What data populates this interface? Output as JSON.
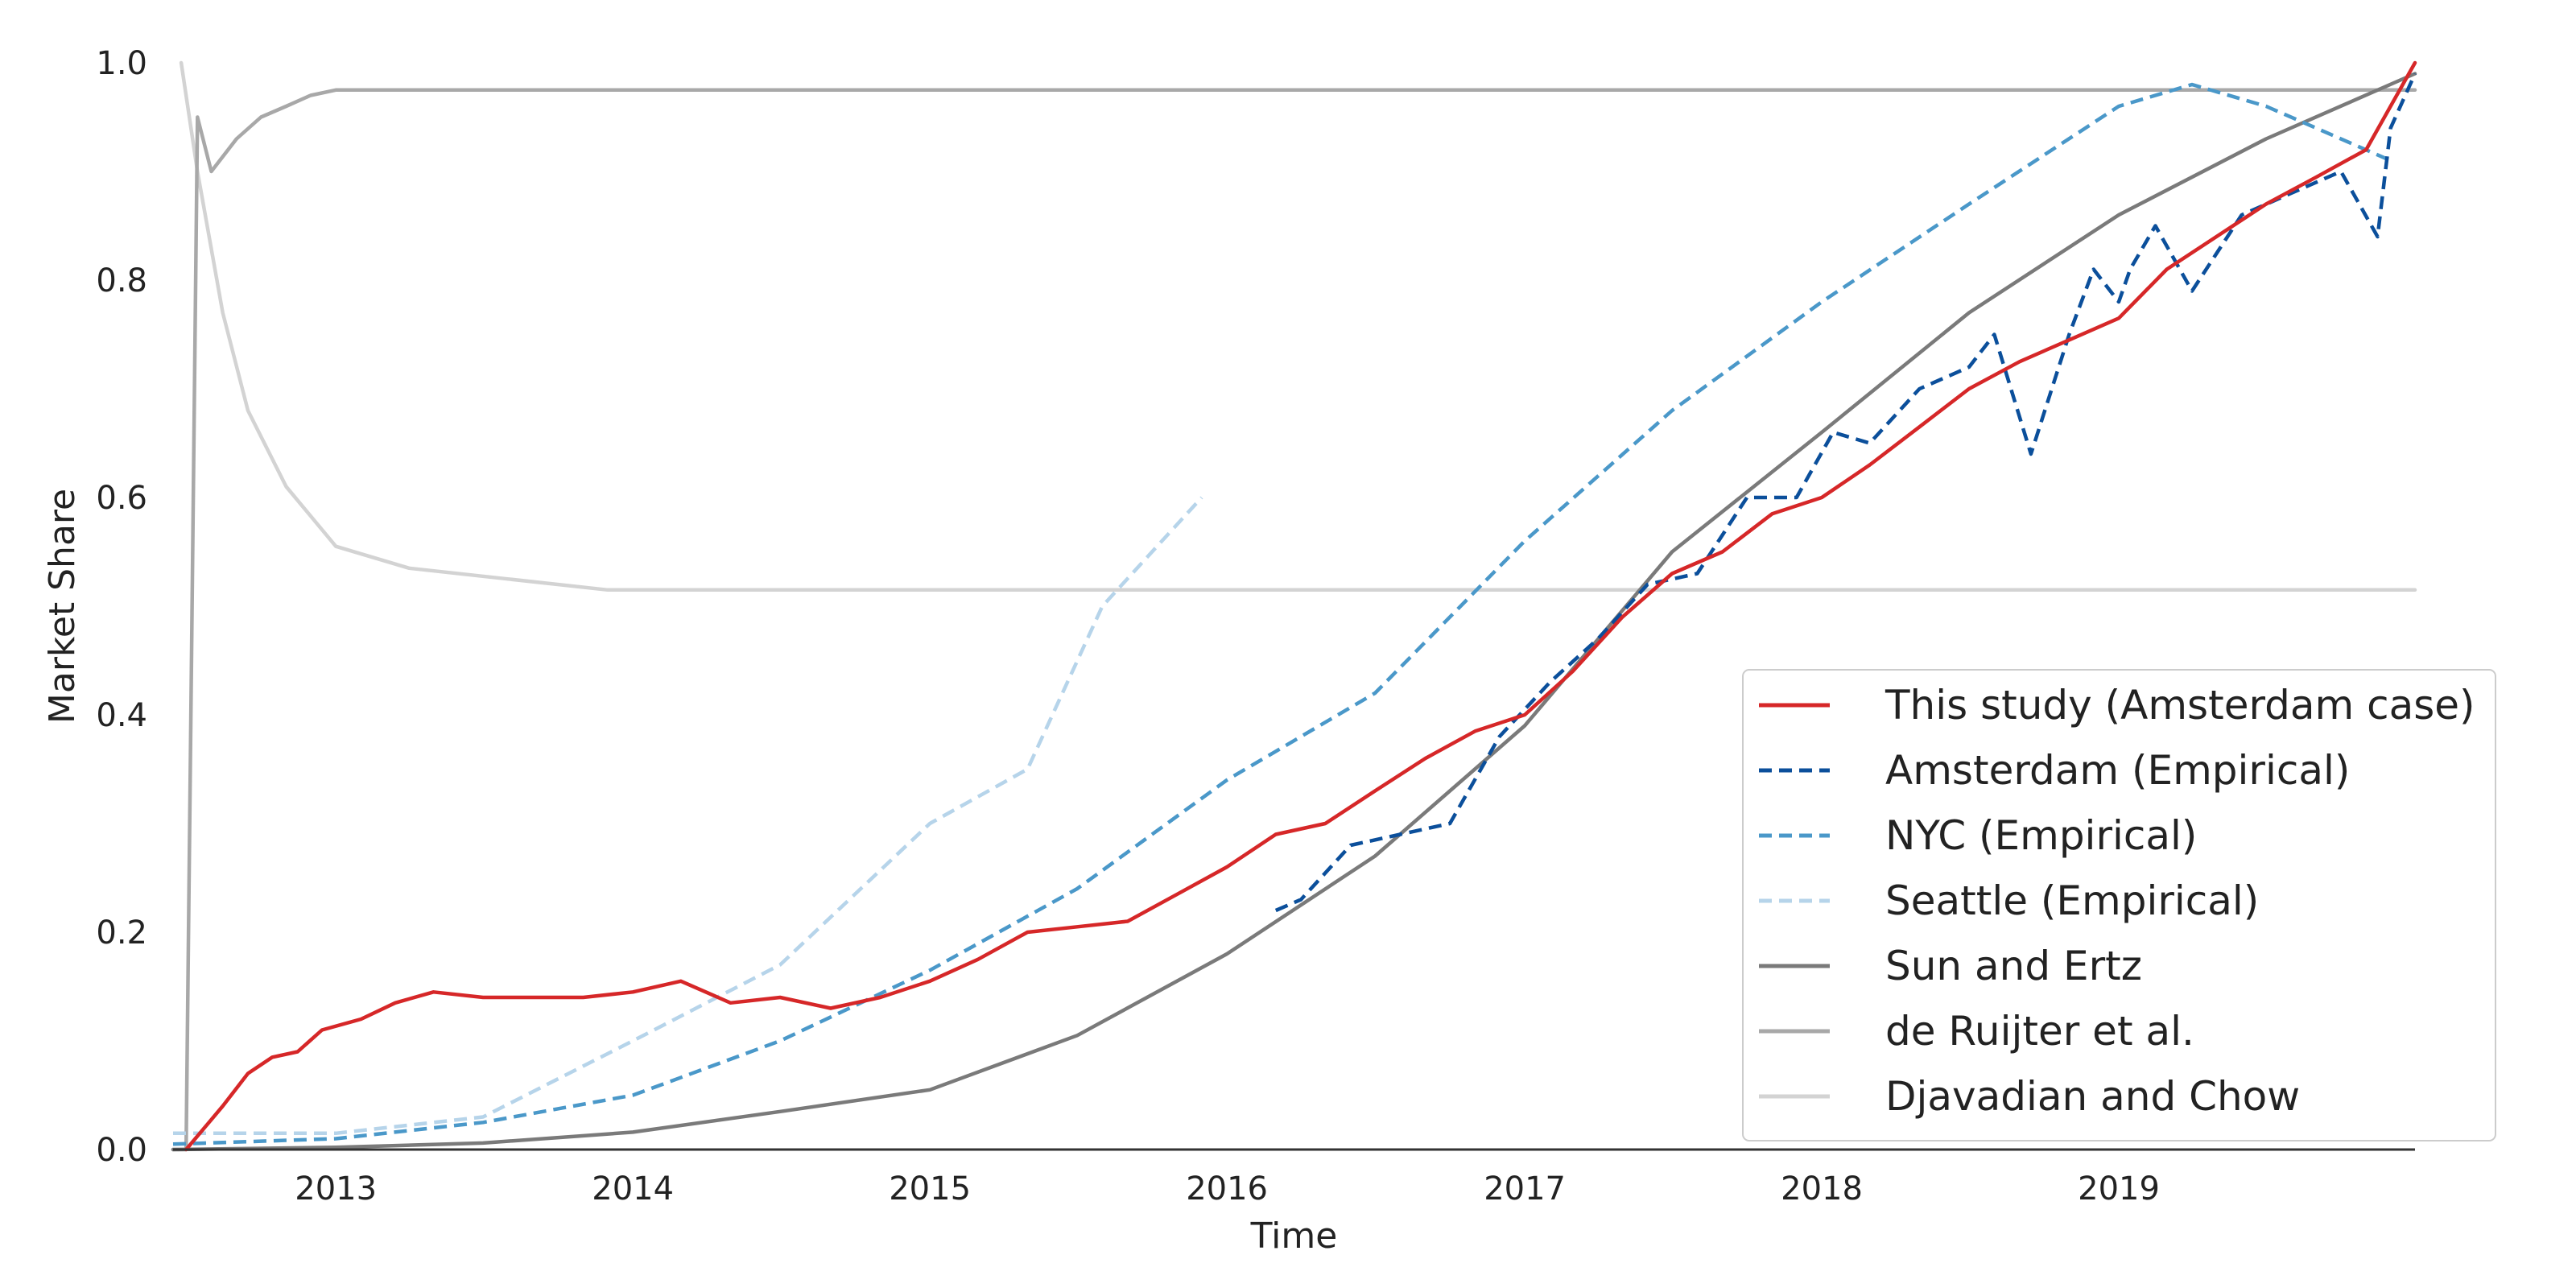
{
  "chart_data": {
    "type": "line",
    "title": "",
    "xlabel": "Time",
    "ylabel": "Market Share",
    "xlim": [
      "2012-06-15",
      "2019-12-31"
    ],
    "ylim": [
      0,
      1
    ],
    "x_ticks": [
      "2013",
      "2014",
      "2015",
      "2016",
      "2017",
      "2018",
      "2019"
    ],
    "y_ticks": [
      "0.0",
      "0.2",
      "0.4",
      "0.6",
      "0.8",
      "1.0"
    ],
    "grid": false,
    "legend_position": "lower-right",
    "series": [
      {
        "name": "This study (Amsterdam case)",
        "color": "#d62728",
        "dash": "solid",
        "points": [
          [
            "2012-07-01",
            0.0
          ],
          [
            "2012-08-15",
            0.04
          ],
          [
            "2012-09-15",
            0.07
          ],
          [
            "2012-10-15",
            0.085
          ],
          [
            "2012-11-15",
            0.09
          ],
          [
            "2012-12-15",
            0.11
          ],
          [
            "2013-02-01",
            0.12
          ],
          [
            "2013-03-15",
            0.135
          ],
          [
            "2013-05-01",
            0.145
          ],
          [
            "2013-07-01",
            0.14
          ],
          [
            "2013-09-01",
            0.14
          ],
          [
            "2013-11-01",
            0.14
          ],
          [
            "2014-01-01",
            0.145
          ],
          [
            "2014-03-01",
            0.155
          ],
          [
            "2014-05-01",
            0.135
          ],
          [
            "2014-07-01",
            0.14
          ],
          [
            "2014-09-01",
            0.13
          ],
          [
            "2014-11-01",
            0.14
          ],
          [
            "2015-01-01",
            0.155
          ],
          [
            "2015-03-01",
            0.175
          ],
          [
            "2015-05-01",
            0.2
          ],
          [
            "2015-07-01",
            0.205
          ],
          [
            "2015-09-01",
            0.21
          ],
          [
            "2015-11-01",
            0.235
          ],
          [
            "2016-01-01",
            0.26
          ],
          [
            "2016-03-01",
            0.29
          ],
          [
            "2016-05-01",
            0.3
          ],
          [
            "2016-07-01",
            0.33
          ],
          [
            "2016-09-01",
            0.36
          ],
          [
            "2016-11-01",
            0.385
          ],
          [
            "2017-01-01",
            0.4
          ],
          [
            "2017-03-01",
            0.44
          ],
          [
            "2017-05-01",
            0.49
          ],
          [
            "2017-07-01",
            0.53
          ],
          [
            "2017-09-01",
            0.55
          ],
          [
            "2017-11-01",
            0.585
          ],
          [
            "2018-01-01",
            0.6
          ],
          [
            "2018-03-01",
            0.63
          ],
          [
            "2018-05-01",
            0.665
          ],
          [
            "2018-07-01",
            0.7
          ],
          [
            "2018-09-01",
            0.725
          ],
          [
            "2018-11-01",
            0.745
          ],
          [
            "2019-01-01",
            0.765
          ],
          [
            "2019-03-01",
            0.81
          ],
          [
            "2019-05-01",
            0.84
          ],
          [
            "2019-07-01",
            0.87
          ],
          [
            "2019-09-01",
            0.895
          ],
          [
            "2019-11-01",
            0.92
          ],
          [
            "2019-12-31",
            1.0
          ]
        ]
      },
      {
        "name": "Amsterdam (Empirical)",
        "color": "#0b4f9b",
        "dash": "dashed",
        "points": [
          [
            "2016-03-01",
            0.22
          ],
          [
            "2016-04-01",
            0.23
          ],
          [
            "2016-06-01",
            0.28
          ],
          [
            "2016-08-01",
            0.29
          ],
          [
            "2016-10-01",
            0.3
          ],
          [
            "2016-12-01",
            0.38
          ],
          [
            "2017-02-01",
            0.43
          ],
          [
            "2017-04-01",
            0.47
          ],
          [
            "2017-06-01",
            0.52
          ],
          [
            "2017-08-01",
            0.53
          ],
          [
            "2017-10-01",
            0.6
          ],
          [
            "2017-12-01",
            0.6
          ],
          [
            "2018-01-15",
            0.66
          ],
          [
            "2018-03-01",
            0.65
          ],
          [
            "2018-05-01",
            0.7
          ],
          [
            "2018-07-01",
            0.72
          ],
          [
            "2018-08-01",
            0.75
          ],
          [
            "2018-09-15",
            0.64
          ],
          [
            "2018-11-01",
            0.75
          ],
          [
            "2018-12-01",
            0.81
          ],
          [
            "2019-01-01",
            0.78
          ],
          [
            "2019-01-15",
            0.81
          ],
          [
            "2019-02-15",
            0.85
          ],
          [
            "2019-04-01",
            0.79
          ],
          [
            "2019-06-01",
            0.86
          ],
          [
            "2019-08-01",
            0.88
          ],
          [
            "2019-10-01",
            0.9
          ],
          [
            "2019-11-15",
            0.84
          ],
          [
            "2019-12-01",
            0.94
          ],
          [
            "2019-12-31",
            0.99
          ]
        ]
      },
      {
        "name": "NYC (Empirical)",
        "color": "#4a98c9",
        "dash": "dashed",
        "points": [
          [
            "2012-06-15",
            0.005
          ],
          [
            "2013-01-01",
            0.01
          ],
          [
            "2013-07-01",
            0.025
          ],
          [
            "2014-01-01",
            0.05
          ],
          [
            "2014-07-01",
            0.1
          ],
          [
            "2015-01-01",
            0.165
          ],
          [
            "2015-07-01",
            0.24
          ],
          [
            "2016-01-01",
            0.34
          ],
          [
            "2016-07-01",
            0.42
          ],
          [
            "2017-01-01",
            0.56
          ],
          [
            "2017-07-01",
            0.68
          ],
          [
            "2018-01-01",
            0.78
          ],
          [
            "2018-07-01",
            0.87
          ],
          [
            "2019-01-01",
            0.96
          ],
          [
            "2019-04-01",
            0.98
          ],
          [
            "2019-07-01",
            0.96
          ],
          [
            "2019-12-01",
            0.91
          ]
        ]
      },
      {
        "name": "Seattle (Empirical)",
        "color": "#b6d4ea",
        "dash": "dashed",
        "points": [
          [
            "2012-06-15",
            0.015
          ],
          [
            "2013-01-01",
            0.015
          ],
          [
            "2013-07-01",
            0.03
          ],
          [
            "2014-01-01",
            0.1
          ],
          [
            "2014-07-01",
            0.17
          ],
          [
            "2015-01-01",
            0.3
          ],
          [
            "2015-05-01",
            0.35
          ],
          [
            "2015-08-01",
            0.5
          ],
          [
            "2015-12-01",
            0.6
          ]
        ]
      },
      {
        "name": "Sun and Ertz",
        "color": "#7a7a7a",
        "dash": "solid",
        "points": [
          [
            "2012-06-15",
            0.0
          ],
          [
            "2013-01-01",
            0.002
          ],
          [
            "2013-07-01",
            0.006
          ],
          [
            "2014-01-01",
            0.016
          ],
          [
            "2014-07-01",
            0.035
          ],
          [
            "2015-01-01",
            0.055
          ],
          [
            "2015-07-01",
            0.105
          ],
          [
            "2016-01-01",
            0.18
          ],
          [
            "2016-07-01",
            0.27
          ],
          [
            "2017-01-01",
            0.39
          ],
          [
            "2017-07-01",
            0.55
          ],
          [
            "2018-01-01",
            0.66
          ],
          [
            "2018-07-01",
            0.77
          ],
          [
            "2019-01-01",
            0.86
          ],
          [
            "2019-07-01",
            0.93
          ],
          [
            "2019-12-31",
            0.99
          ]
        ]
      },
      {
        "name": "de Ruijter et al.",
        "color": "#a8a8a8",
        "dash": "solid",
        "points": [
          [
            "2012-06-15",
            0.0
          ],
          [
            "2012-07-01",
            0.0
          ],
          [
            "2012-07-15",
            0.95
          ],
          [
            "2012-08-01",
            0.9
          ],
          [
            "2012-09-01",
            0.93
          ],
          [
            "2012-10-01",
            0.95
          ],
          [
            "2012-11-01",
            0.96
          ],
          [
            "2012-12-01",
            0.97
          ],
          [
            "2013-01-01",
            0.975
          ],
          [
            "2019-12-31",
            0.975
          ]
        ]
      },
      {
        "name": "Djavadian and Chow",
        "color": "#d3d3d3",
        "dash": "solid",
        "points": [
          [
            "2012-06-25",
            1.0
          ],
          [
            "2012-07-15",
            0.9
          ],
          [
            "2012-08-15",
            0.77
          ],
          [
            "2012-09-15",
            0.68
          ],
          [
            "2012-11-01",
            0.61
          ],
          [
            "2013-01-01",
            0.555
          ],
          [
            "2013-04-01",
            0.535
          ],
          [
            "2013-08-01",
            0.525
          ],
          [
            "2013-12-01",
            0.515
          ],
          [
            "2019-12-31",
            0.515
          ]
        ]
      }
    ]
  }
}
